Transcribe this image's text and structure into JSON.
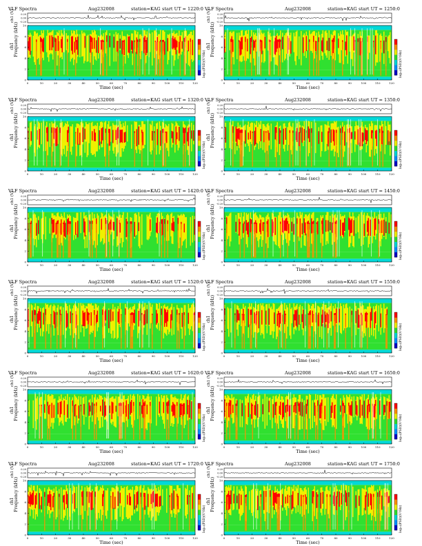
{
  "common": {
    "title_prefix": "VLF Spectra",
    "date": "Aug232008",
    "station": "station=KAG",
    "start_label": "start  UT  =",
    "waveform_ylabel": "ch1 (V)",
    "waveform_ticks": [
      "0.20",
      "0.00",
      "-0.20"
    ],
    "spec_ylabel_top": "ch1",
    "spec_ylabel": "Frequency  (kHz)",
    "spec_yticks": [
      "0",
      "2",
      "4",
      "6",
      "8",
      "10"
    ],
    "xlabel": "Time  (sec)",
    "xticks": [
      "0",
      "10",
      "20",
      "30",
      "40",
      "50",
      "60",
      "70",
      "80",
      "90",
      "100",
      "110",
      "120"
    ],
    "colorbar_label": "log₁₀(PSD)(V²/Hz)"
  },
  "colors": {
    "blue_dark": "#0000c8",
    "blue": "#0090ff",
    "cyan": "#00d8d8",
    "green": "#30e030",
    "yellow": "#f0f000",
    "orange": "#ff9000",
    "red": "#ff0000"
  },
  "chart_data": [
    {
      "type": "heatmap",
      "start_ut": "1220:0",
      "x_range": [
        0,
        120
      ],
      "freq_range_khz": [
        0,
        10
      ]
    },
    {
      "type": "heatmap",
      "start_ut": "1250:0",
      "x_range": [
        0,
        120
      ],
      "freq_range_khz": [
        0,
        10
      ]
    },
    {
      "type": "heatmap",
      "start_ut": "1320:0",
      "x_range": [
        0,
        120
      ],
      "freq_range_khz": [
        0,
        10
      ]
    },
    {
      "type": "heatmap",
      "start_ut": "1350:0",
      "x_range": [
        0,
        120
      ],
      "freq_range_khz": [
        0,
        10
      ]
    },
    {
      "type": "heatmap",
      "start_ut": "1420:0",
      "x_range": [
        0,
        120
      ],
      "freq_range_khz": [
        0,
        10
      ]
    },
    {
      "type": "heatmap",
      "start_ut": "1450:0",
      "x_range": [
        0,
        120
      ],
      "freq_range_khz": [
        0,
        10
      ]
    },
    {
      "type": "heatmap",
      "start_ut": "1520:0",
      "x_range": [
        0,
        120
      ],
      "freq_range_khz": [
        0,
        10
      ]
    },
    {
      "type": "heatmap",
      "start_ut": "1550:0",
      "x_range": [
        0,
        120
      ],
      "freq_range_khz": [
        0,
        10
      ]
    },
    {
      "type": "heatmap",
      "start_ut": "1620:0",
      "x_range": [
        0,
        120
      ],
      "freq_range_khz": [
        0,
        10
      ]
    },
    {
      "type": "heatmap",
      "start_ut": "1650:0",
      "x_range": [
        0,
        120
      ],
      "freq_range_khz": [
        0,
        10
      ]
    },
    {
      "type": "heatmap",
      "start_ut": "1720:0",
      "x_range": [
        0,
        120
      ],
      "freq_range_khz": [
        0,
        10
      ]
    },
    {
      "type": "heatmap",
      "start_ut": "1750:0",
      "x_range": [
        0,
        120
      ],
      "freq_range_khz": [
        0,
        10
      ]
    }
  ]
}
